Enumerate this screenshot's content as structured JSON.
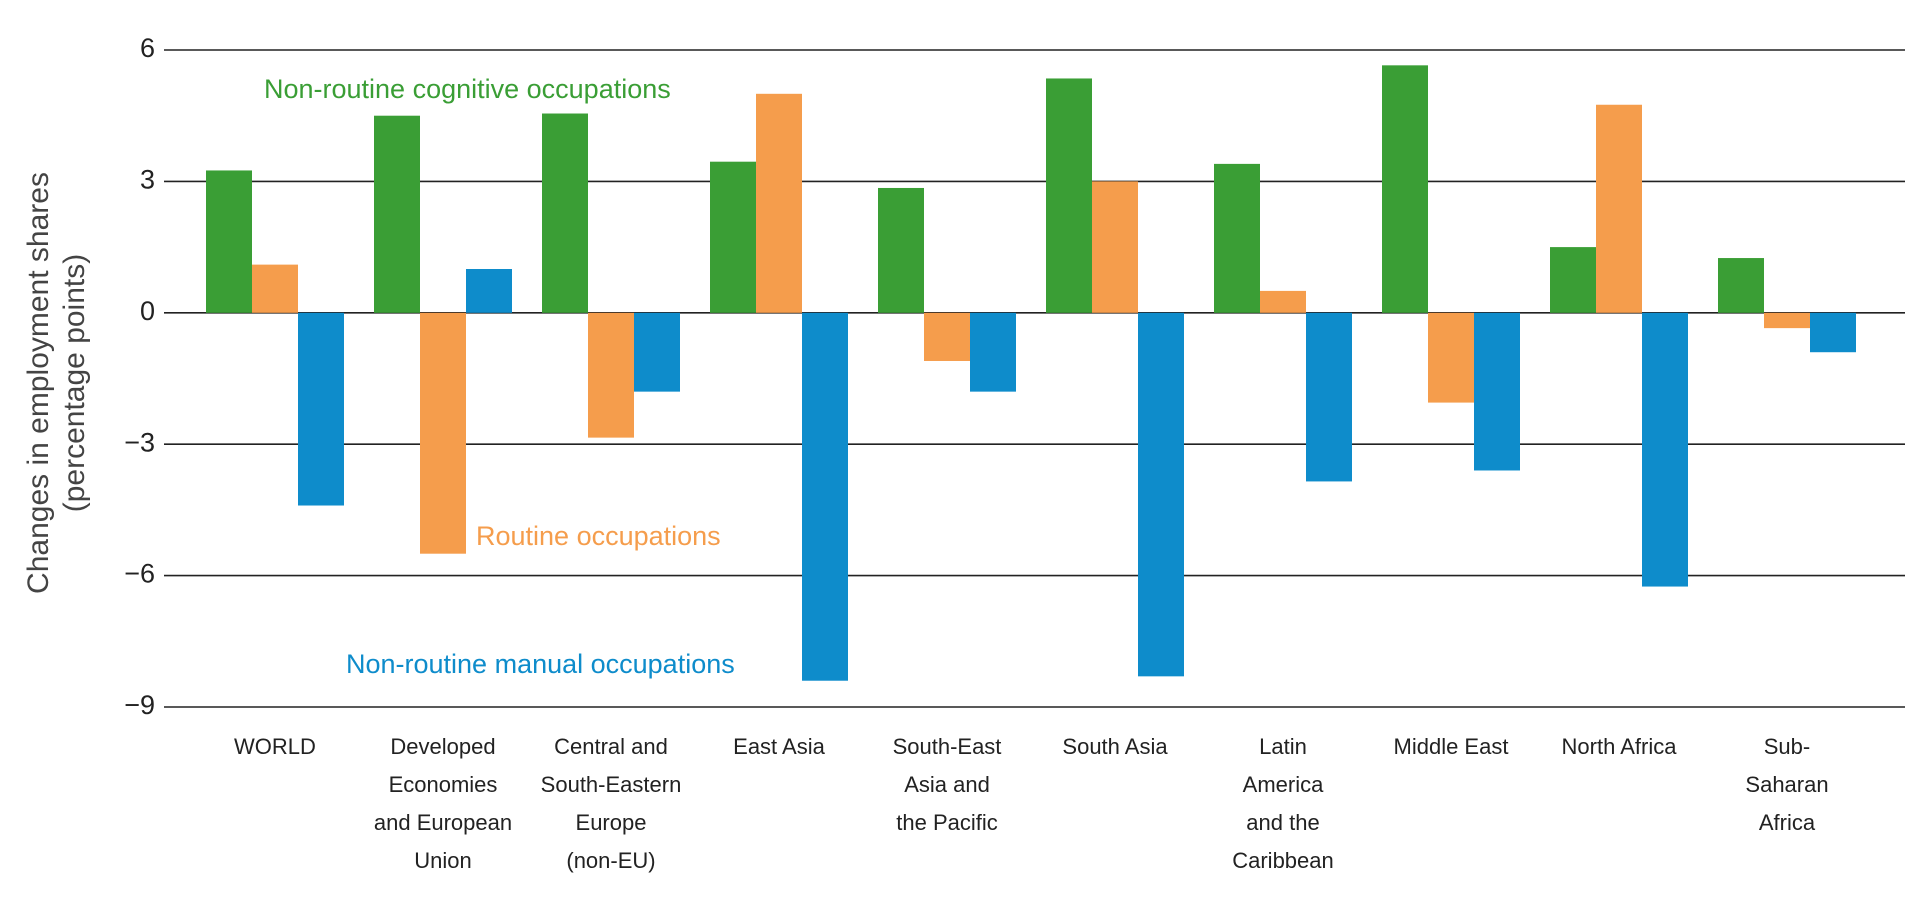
{
  "chart_data": {
    "type": "bar",
    "y_label": [
      "Changes in employment shares",
      "(percentage points)"
    ],
    "categories": [
      "WORLD",
      "Developed\nEconomies\nand European\nUnion",
      "Central and\nSouth-Eastern\nEurope\n(non-EU)",
      "East Asia",
      "South-East\nAsia and\nthe Pacific",
      "South Asia",
      "Latin\nAmerica\nand the\nCaribbean",
      "Middle East",
      "North Africa",
      "Sub-\nSaharan\nAfrica"
    ],
    "series": [
      {
        "name": "Non-routine cognitive occupations",
        "color": "#3a9e35",
        "values": [
          3.25,
          4.5,
          4.55,
          3.45,
          2.85,
          5.35,
          3.4,
          5.65,
          1.5,
          1.25
        ]
      },
      {
        "name": "Routine occupations",
        "color": "#f59d4c",
        "values": [
          1.1,
          -5.5,
          -2.85,
          5.0,
          -1.1,
          3.0,
          0.5,
          -2.05,
          4.75,
          -0.35
        ]
      },
      {
        "name": "Non-routine manual occupations",
        "color": "#0e8ccb",
        "values": [
          -4.4,
          1.0,
          -1.8,
          -8.4,
          -1.8,
          -8.3,
          -3.85,
          -3.6,
          -6.25,
          -0.9
        ]
      }
    ],
    "ylim": [
      -9,
      6
    ],
    "yticks": [
      {
        "value": -9,
        "label": "−9"
      },
      {
        "value": -6,
        "label": "−6"
      },
      {
        "value": -3,
        "label": "−3"
      },
      0,
      3,
      6
    ],
    "grid": true
  }
}
